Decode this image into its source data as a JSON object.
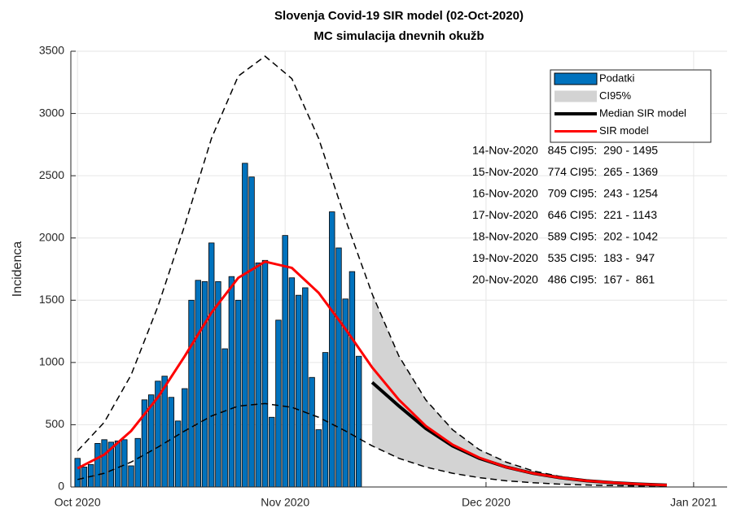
{
  "chart_data": {
    "type": "bar",
    "title": "Slovenja Covid-19 SIR model (02-Oct-2020)",
    "subtitle": "MC simulacija dnevnih okužb",
    "y_label": "Incidenca",
    "xlim": [
      -1,
      97
    ],
    "ylim": [
      0,
      3500
    ],
    "xticks": [
      {
        "value": 0,
        "label": "Oct 2020"
      },
      {
        "value": 31,
        "label": "Nov 2020"
      },
      {
        "value": 61,
        "label": "Dec 2020"
      },
      {
        "value": 92,
        "label": "Jan 2021"
      }
    ],
    "yticks": [
      0,
      500,
      1000,
      1500,
      2000,
      2500,
      3000,
      3500
    ],
    "grid": true,
    "legend": "northeast",
    "series": [
      {
        "name": "Podatki",
        "type": "bar",
        "color": "#0072bd",
        "x": [
          0,
          1,
          2,
          3,
          4,
          5,
          6,
          7,
          8,
          9,
          10,
          11,
          12,
          13,
          14,
          15,
          16,
          17,
          18,
          19,
          20,
          21,
          22,
          23,
          24,
          25,
          26,
          27,
          28,
          29,
          30,
          31,
          32,
          33,
          34,
          35,
          36,
          37,
          38,
          39,
          40,
          41,
          42
        ],
        "values": [
          230,
          160,
          180,
          350,
          380,
          360,
          370,
          380,
          170,
          390,
          700,
          740,
          850,
          890,
          720,
          530,
          790,
          1500,
          1660,
          1650,
          1960,
          1650,
          1110,
          1690,
          1500,
          2600,
          2490,
          1800,
          1820,
          560,
          1340,
          2020,
          1680,
          1540,
          1600,
          880,
          460,
          1080,
          2210,
          1920,
          1510,
          1730,
          1050
        ]
      },
      {
        "name": "CI95%",
        "type": "band",
        "color": "#d3d3d3",
        "x": [
          44,
          48,
          52,
          56,
          60,
          64,
          68,
          72,
          76,
          80,
          84,
          88
        ],
        "upper": [
          1550,
          1050,
          700,
          460,
          300,
          200,
          130,
          85,
          55,
          36,
          24,
          16
        ],
        "lower": [
          330,
          230,
          160,
          110,
          75,
          50,
          34,
          23,
          16,
          11,
          7,
          5
        ]
      },
      {
        "name": "Median SIR model",
        "type": "line",
        "color": "#000000",
        "width": 4,
        "x": [
          44,
          48,
          52,
          56,
          60,
          64,
          68,
          72,
          76,
          80,
          84,
          88
        ],
        "values": [
          840,
          650,
          470,
          330,
          230,
          160,
          110,
          75,
          50,
          34,
          23,
          15
        ]
      },
      {
        "name": "SIR model",
        "type": "line",
        "color": "#ff0000",
        "width": 3,
        "x": [
          0,
          4,
          8,
          12,
          16,
          20,
          24,
          28,
          32,
          36,
          40,
          44,
          48,
          52,
          56,
          60,
          64,
          68,
          72,
          76,
          80,
          84,
          88
        ],
        "values": [
          150,
          260,
          450,
          720,
          1050,
          1400,
          1680,
          1810,
          1760,
          1560,
          1270,
          960,
          700,
          490,
          340,
          235,
          160,
          110,
          75,
          50,
          34,
          23,
          15
        ]
      }
    ],
    "bounds": {
      "color": "#000000",
      "x": [
        0,
        4,
        8,
        12,
        16,
        20,
        24,
        28,
        32,
        36,
        40,
        44,
        48,
        52,
        56,
        60,
        64,
        68,
        72,
        76,
        80,
        84,
        88
      ],
      "upper": [
        290,
        520,
        900,
        1450,
        2100,
        2800,
        3300,
        3460,
        3280,
        2800,
        2150,
        1550,
        1050,
        700,
        460,
        300,
        200,
        130,
        85,
        55,
        36,
        24,
        16
      ],
      "lower": [
        60,
        110,
        200,
        320,
        450,
        570,
        650,
        670,
        640,
        560,
        450,
        330,
        230,
        160,
        110,
        75,
        50,
        34,
        23,
        16,
        11,
        7,
        5
      ]
    },
    "annotations": [
      "14-Nov-2020   845 CI95:  290 - 1495",
      "15-Nov-2020   774 CI95:  265 - 1369",
      "16-Nov-2020   709 CI95:  243 - 1254",
      "17-Nov-2020   646 CI95:  221 - 1143",
      "18-Nov-2020   589 CI95:  202 - 1042",
      "19-Nov-2020   535 CI95:  183 -  947",
      "20-Nov-2020   486 CI95:  167 -  861"
    ]
  }
}
